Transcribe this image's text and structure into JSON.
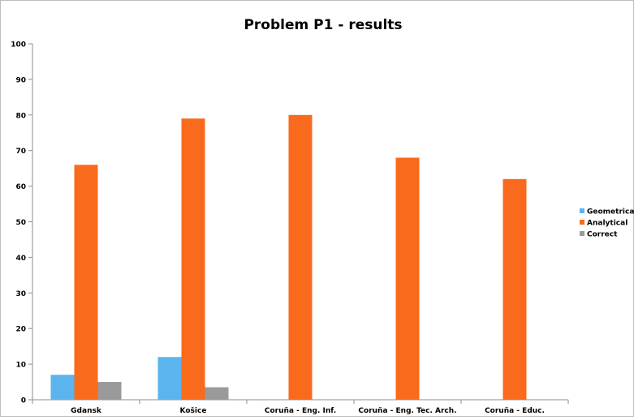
{
  "chart_data": {
    "type": "bar",
    "title": "Problem P1 - results",
    "xlabel": "",
    "ylabel": "",
    "categories": [
      "Gdansk",
      "Košice",
      "Coruña - Eng. Inf.",
      "Coruña - Eng. Tec. Arch.",
      "Coruña - Educ."
    ],
    "series": [
      {
        "name": "Geometrical",
        "color": "#5bb4ee",
        "values": [
          7,
          12,
          0,
          0,
          0
        ]
      },
      {
        "name": "Analytical",
        "color": "#fa6a1c",
        "values": [
          66,
          79,
          80,
          68,
          62
        ]
      },
      {
        "name": "Correct",
        "color": "#9a9a9a",
        "values": [
          5,
          3.5,
          0,
          0,
          0
        ]
      }
    ],
    "ylim": [
      0,
      100
    ],
    "yticks": [
      0,
      10,
      20,
      30,
      40,
      50,
      60,
      70,
      80,
      90,
      100
    ],
    "grid": false,
    "legend_position": "right"
  }
}
